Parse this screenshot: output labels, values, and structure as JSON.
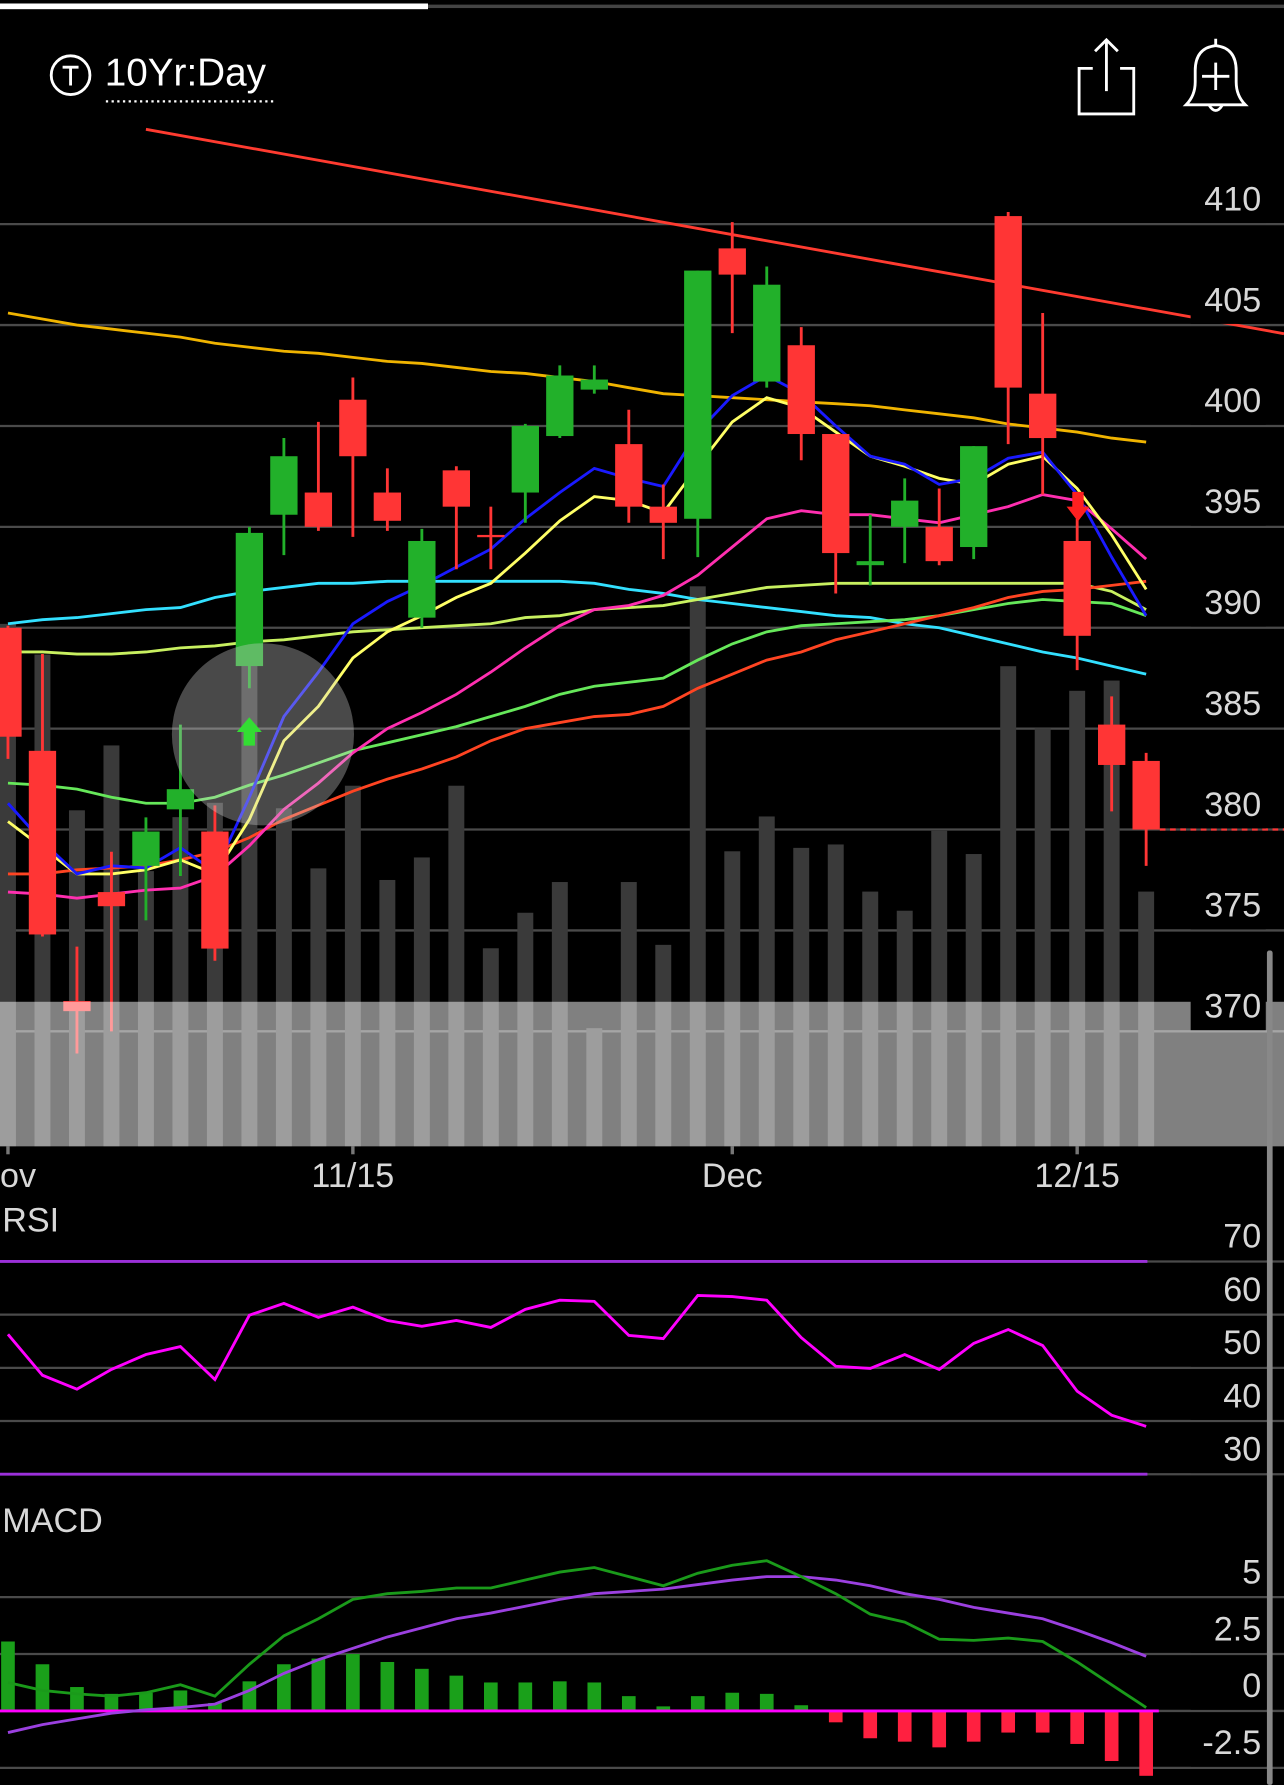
{
  "header": {
    "title": "10Yr:Day"
  },
  "chart_data": [
    {
      "type": "candlestick",
      "categories": [
        "ov",
        null,
        null,
        null,
        null,
        null,
        null,
        null,
        null,
        null,
        "11/15",
        null,
        null,
        null,
        null,
        null,
        null,
        null,
        null,
        null,
        null,
        "Dec",
        null,
        null,
        null,
        null,
        null,
        null,
        null,
        null,
        null,
        "12/15",
        null,
        null
      ],
      "open": [
        390.0,
        383.9,
        371.5,
        376.9,
        378.2,
        381.0,
        379.9,
        388.1,
        395.6,
        396.7,
        401.3,
        396.7,
        390.5,
        397.8,
        394.6,
        396.7,
        399.5,
        401.8,
        399.1,
        396.0,
        395.4,
        408.8,
        402.2,
        404.0,
        399.6,
        393.1,
        395.0,
        395.0,
        394.0,
        410.4,
        401.6,
        394.3,
        385.2,
        383.4
      ],
      "high": [
        390.1,
        388.7,
        374.2,
        378.9,
        380.6,
        385.2,
        381.2,
        395.0,
        399.4,
        400.2,
        402.4,
        397.9,
        394.9,
        398.0,
        396.0,
        400.1,
        403.0,
        403.0,
        400.8,
        397.1,
        407.7,
        410.1,
        407.9,
        404.9,
        399.6,
        395.6,
        397.4,
        396.9,
        399.0,
        410.6,
        405.6,
        395.4,
        386.6,
        383.8
      ],
      "low": [
        383.5,
        374.7,
        368.9,
        370.0,
        375.5,
        377.7,
        373.5,
        387.0,
        393.6,
        394.8,
        394.5,
        394.8,
        390.0,
        392.9,
        392.9,
        395.2,
        399.4,
        401.6,
        395.2,
        393.4,
        393.5,
        404.6,
        401.9,
        398.3,
        391.7,
        392.1,
        393.2,
        393.1,
        393.4,
        399.1,
        396.6,
        387.9,
        380.9,
        378.2
      ],
      "close": [
        384.6,
        374.8,
        371.0,
        376.2,
        379.9,
        382.0,
        374.1,
        394.7,
        398.5,
        395.0,
        398.5,
        395.3,
        394.3,
        396.0,
        394.5,
        400.0,
        402.5,
        402.3,
        396.0,
        395.2,
        407.7,
        407.5,
        407.0,
        399.6,
        393.7,
        393.3,
        396.3,
        393.3,
        399.0,
        401.9,
        399.4,
        389.6,
        383.2,
        380.0
      ],
      "up_color": "#22b02a",
      "down_color": "#ff3535",
      "volume": [
        76.5,
        72,
        49.2,
        58.7,
        40.3,
        48.2,
        50.3,
        89.5,
        49.5,
        40.7,
        52.8,
        39,
        42.3,
        52.8,
        29,
        34.2,
        38.7,
        17.3,
        38.7,
        29.5,
        82,
        43.2,
        48.3,
        43.7,
        44.2,
        37.3,
        34.5,
        46.2,
        42.8,
        70.3,
        61.2,
        66.7,
        68.2,
        37.3
      ],
      "volume_color": "#3a3a3a",
      "volume_ylim": [
        0,
        100
      ],
      "ylim": [
        364.3,
        414.9
      ],
      "yticks": [
        410,
        405,
        400,
        395,
        390,
        385,
        380,
        375,
        370
      ],
      "grid": true,
      "series": [
        {
          "color": "#f0b400",
          "values": [
            405.6,
            405.3,
            405.0,
            404.8,
            404.6,
            404.4,
            404.1,
            403.9,
            403.7,
            403.6,
            403.4,
            403.2,
            403.1,
            402.9,
            402.7,
            402.6,
            402.4,
            402.2,
            401.9,
            401.6,
            401.5,
            401.4,
            401.3,
            401.2,
            401.1,
            401.0,
            400.8,
            400.6,
            400.4,
            400.1,
            399.9,
            399.7,
            399.4,
            399.2
          ]
        },
        {
          "color": "#33e0ff",
          "values": [
            390.2,
            390.4,
            390.5,
            390.7,
            390.9,
            391.0,
            391.5,
            391.8,
            392.0,
            392.2,
            392.2,
            392.3,
            392.3,
            392.3,
            392.3,
            392.3,
            392.3,
            392.2,
            391.9,
            391.7,
            391.4,
            391.2,
            391.0,
            390.8,
            390.6,
            390.5,
            390.2,
            390.0,
            389.6,
            389.2,
            388.8,
            388.5,
            388.1,
            387.7
          ]
        },
        {
          "color": "#c8f060",
          "values": [
            388.8,
            388.8,
            388.7,
            388.7,
            388.8,
            389.0,
            389.1,
            389.3,
            389.4,
            389.6,
            389.8,
            389.9,
            390.0,
            390.1,
            390.2,
            390.5,
            390.6,
            390.9,
            391.0,
            391.1,
            391.4,
            391.7,
            392.0,
            392.1,
            392.2,
            392.2,
            392.2,
            392.2,
            392.2,
            392.2,
            392.2,
            392.2,
            391.8,
            390.9
          ]
        },
        {
          "color": "#66e85a",
          "values": [
            382.3,
            382.2,
            382.0,
            381.6,
            381.3,
            381.3,
            381.6,
            382.2,
            382.7,
            383.3,
            383.9,
            384.3,
            384.7,
            385.1,
            385.6,
            386.1,
            386.7,
            387.1,
            387.3,
            387.5,
            388.4,
            389.2,
            389.8,
            390.1,
            390.2,
            390.3,
            390.4,
            390.6,
            390.9,
            391.2,
            391.4,
            391.3,
            391.2,
            390.6
          ]
        },
        {
          "color": "#ff4422",
          "values": [
            377.8,
            377.8,
            378.0,
            378.1,
            378.2,
            378.5,
            378.9,
            379.6,
            380.5,
            381.2,
            381.9,
            382.5,
            383.0,
            383.6,
            384.4,
            385.0,
            385.3,
            385.6,
            385.7,
            386.1,
            387.0,
            387.7,
            388.4,
            388.8,
            389.4,
            389.8,
            390.2,
            390.6,
            391.0,
            391.5,
            391.8,
            391.9,
            392.1,
            392.3
          ]
        },
        {
          "color": "#ff2fb0",
          "values": [
            376.9,
            376.8,
            376.6,
            376.8,
            377.0,
            377.1,
            377.7,
            379.2,
            381.0,
            382.3,
            383.8,
            385.0,
            385.8,
            386.7,
            387.8,
            389.0,
            390.1,
            390.9,
            391.1,
            391.6,
            392.6,
            394.0,
            395.4,
            395.8,
            395.6,
            395.6,
            395.4,
            395.2,
            395.6,
            396.0,
            396.6,
            396.3,
            394.9,
            393.4
          ]
        },
        {
          "color": "#ffff66",
          "values": [
            380.4,
            379.1,
            377.8,
            377.8,
            378.0,
            378.5,
            377.8,
            380.5,
            384.4,
            386.1,
            388.5,
            389.8,
            390.6,
            391.5,
            392.2,
            393.7,
            395.3,
            396.5,
            396.3,
            395.7,
            398.0,
            400.2,
            401.4,
            400.9,
            399.7,
            398.5,
            398.0,
            397.4,
            397.1,
            398.1,
            398.5,
            396.9,
            394.6,
            391.9
          ]
        },
        {
          "color": "#1a1aff",
          "values": [
            381.3,
            379.4,
            377.8,
            378.2,
            378.1,
            379.1,
            377.9,
            381.6,
            385.6,
            387.8,
            390.2,
            391.3,
            392.1,
            393.0,
            393.9,
            395.4,
            396.7,
            397.9,
            397.4,
            397.0,
            399.7,
            401.5,
            402.5,
            401.6,
            400.0,
            398.5,
            398.1,
            397.1,
            397.4,
            398.4,
            398.7,
            396.6,
            393.5,
            390.6
          ]
        }
      ],
      "trendline": {
        "x": [
          4,
          33
        ],
        "values": [
          414.7,
          405.8
        ],
        "color": "#ff3b30"
      }
    },
    {
      "type": "line",
      "title": "RSI",
      "values": [
        56.3,
        48.6,
        46.0,
        49.7,
        52.5,
        54.0,
        47.8,
        59.9,
        62.1,
        59.5,
        61.4,
        58.9,
        57.8,
        58.9,
        57.6,
        61.0,
        62.7,
        62.5,
        56.1,
        55.5,
        63.6,
        63.4,
        62.7,
        55.7,
        50.3,
        49.9,
        52.5,
        49.7,
        54.6,
        57.2,
        54.2,
        45.6,
        41.1,
        39.0
      ],
      "color": "#ff00ff",
      "ylim": [
        26.8,
        80.3
      ],
      "yticks": [
        70,
        60,
        50,
        40,
        30
      ],
      "bands": [
        70,
        30
      ],
      "band_color": "#9b30d9"
    },
    {
      "type": "macd",
      "title": "MACD",
      "macd": [
        1.25,
        0.9,
        0.75,
        0.65,
        0.8,
        1.15,
        0.65,
        2.05,
        3.3,
        4.05,
        4.9,
        5.15,
        5.25,
        5.4,
        5.4,
        5.75,
        6.1,
        6.3,
        5.9,
        5.5,
        6.05,
        6.4,
        6.6,
        5.9,
        5.15,
        4.25,
        3.9,
        3.15,
        3.1,
        3.2,
        3.05,
        2.15,
        1.15,
        0.15
      ],
      "signal": [
        -0.95,
        -0.6,
        -0.35,
        -0.1,
        0.05,
        0.15,
        0.3,
        0.9,
        1.65,
        2.25,
        2.75,
        3.25,
        3.65,
        4.05,
        4.3,
        4.6,
        4.9,
        5.15,
        5.25,
        5.35,
        5.55,
        5.75,
        5.9,
        5.9,
        5.75,
        5.5,
        5.15,
        4.9,
        4.55,
        4.3,
        4.05,
        3.55,
        3.0,
        2.4
      ],
      "histogram": [
        3.05,
        2.05,
        1.05,
        0.75,
        0.8,
        0.9,
        0.35,
        1.3,
        2.05,
        2.3,
        2.5,
        2.15,
        1.85,
        1.55,
        1.25,
        1.25,
        1.3,
        1.25,
        0.65,
        0.2,
        0.65,
        0.8,
        0.75,
        0.25,
        -0.5,
        -1.2,
        -1.35,
        -1.6,
        -1.35,
        -0.95,
        -0.95,
        -1.45,
        -2.2,
        -2.85
      ],
      "macd_color": "#1a9a1a",
      "signal_color": "#9b40e0",
      "up_color": "#1aa01a",
      "down_color": "#ff2040",
      "zero_color": "#ff00ff",
      "ylim": [
        -3.25,
        9.15
      ],
      "yticks": [
        5,
        2.5,
        0,
        -2.5
      ]
    }
  ]
}
